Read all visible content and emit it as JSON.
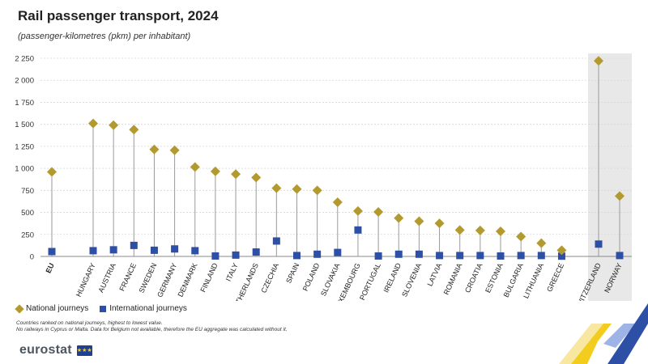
{
  "header": {
    "title": "Rail passenger transport, 2024",
    "subtitle": "(passenger-kilometres (pkm) per inhabitant)"
  },
  "legend": {
    "national": "National journeys",
    "international": "International journeys"
  },
  "notes": {
    "line1": "Countries ranked on national journeys, highest to lowest value.",
    "line2": "No railways in Cyprus or Malta. Data for Belgium not available, therefore the EU aggregate was calculated without it."
  },
  "brand": {
    "name": "eurostat",
    "flag_stars": "★★★"
  },
  "colors": {
    "national": "#b39a2f",
    "international": "#2e4fa6",
    "highlight": "#e8e8e8"
  },
  "chart_data": {
    "type": "scatter",
    "title": "Rail passenger transport, 2024",
    "subtitle": "(passenger-kilometres (pkm) per inhabitant)",
    "ylim": [
      0,
      2250
    ],
    "yticks": [
      0,
      250,
      500,
      750,
      1000,
      1250,
      1500,
      1750,
      2000,
      2250
    ],
    "ytick_labels": [
      "0",
      "250",
      "500",
      "750",
      "1 000",
      "1 250",
      "1 500",
      "1 750",
      "2 000",
      "2 250"
    ],
    "grid": true,
    "legend_position": "bottom-left",
    "categories": [
      "EU",
      "HUNGARY",
      "AUSTRIA",
      "FRANCE",
      "SWEDEN",
      "GERMANY",
      "DENMARK",
      "FINLAND",
      "ITALY",
      "NETHERLANDS",
      "CZECHIA",
      "SPAIN",
      "POLAND",
      "SLOVAKIA",
      "LUXEMBOURG",
      "PORTUGAL",
      "IRELAND",
      "SLOVENIA",
      "LATVIA",
      "ROMANIA",
      "CROATIA",
      "ESTONIA",
      "BULGARIA",
      "LITHUANIA",
      "GREECE",
      "SWITZERLAND",
      "NORWAY"
    ],
    "series": [
      {
        "name": "National journeys",
        "values": [
          960,
          1510,
          1490,
          1440,
          1215,
          1205,
          1015,
          965,
          935,
          895,
          775,
          765,
          750,
          615,
          515,
          505,
          435,
          400,
          375,
          300,
          295,
          285,
          225,
          150,
          70,
          2220,
          685
        ]
      },
      {
        "name": "International journeys",
        "values": [
          55,
          65,
          75,
          125,
          70,
          85,
          65,
          5,
          15,
          50,
          175,
          10,
          25,
          45,
          300,
          5,
          25,
          25,
          10,
          10,
          10,
          5,
          10,
          10,
          3,
          140,
          10
        ]
      }
    ]
  }
}
